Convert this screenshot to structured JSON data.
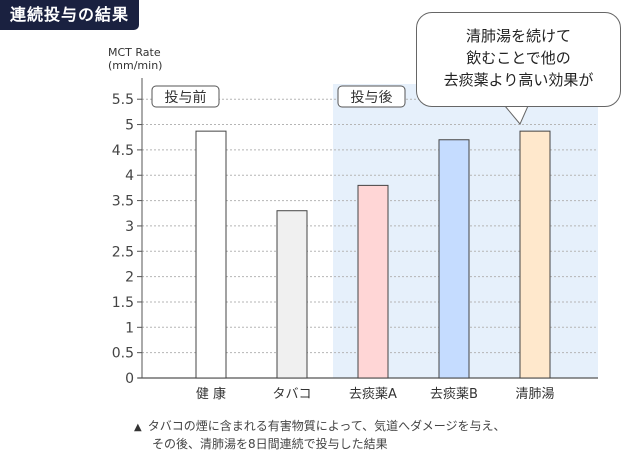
{
  "title": "連続投与の結果",
  "callout": {
    "lines": [
      "清肺湯を続けて",
      "飲むことで他の",
      "去痰薬より高い効果が"
    ]
  },
  "footnote": {
    "marker": "▲",
    "line1": "タバコの煙に含まれる有害物質によって、気道へダメージを与え、",
    "line2": "その後、清肺湯を8日間連続で投与した結果"
  },
  "chart_data": {
    "type": "bar",
    "ylabel_line1": "MCT Rate",
    "ylabel_line2": "(mm/min)",
    "ylim": [
      0,
      5.8
    ],
    "yticks": [
      0,
      0.5,
      1,
      1.5,
      2,
      2.5,
      3,
      3.5,
      4,
      4.5,
      5,
      5.5
    ],
    "categories": [
      "健 康",
      "タバコ",
      "去痰薬A",
      "去痰薬B",
      "清肺湯"
    ],
    "values": [
      4.87,
      3.3,
      3.8,
      4.7,
      4.87
    ],
    "bar_colors": [
      "#ffffff",
      "#f0f0f0",
      "#ffd6d6",
      "#c5dcff",
      "#ffe8cc"
    ],
    "group_labels": [
      "投与前",
      "投与後"
    ],
    "group_shade_color": "#e6f0fb",
    "grid": true
  }
}
